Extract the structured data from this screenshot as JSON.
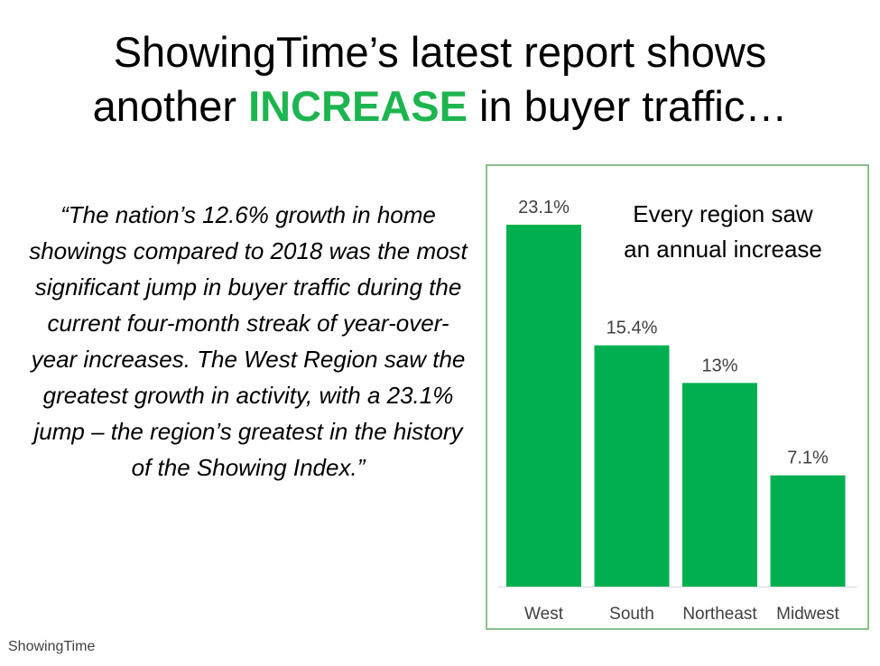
{
  "title": {
    "line1": "ShowingTime’s latest report shows",
    "line2_before": "another ",
    "line2_highlight": "INCREASE",
    "line2_after": " in buyer traffic…"
  },
  "quote": "“The nation’s 12.6% growth in home showings compared to 2018 was the most significant jump in buyer traffic during the current four-month streak of year-over-year increases. The West Region saw the greatest growth in activity, with a 23.1% jump – the region’s greatest in the history of the Showing Index.”",
  "source": "ShowingTime",
  "colors": {
    "bar": "#00b050",
    "highlight": "#1db54f",
    "border": "#8bbf8b"
  },
  "chart_data": {
    "type": "bar",
    "title": "Every region saw an annual increase",
    "title_lines": [
      "Every region saw",
      "an annual increase"
    ],
    "categories": [
      "West",
      "South",
      "Northeast",
      "Midwest"
    ],
    "values": [
      23.1,
      15.4,
      13,
      7.1
    ],
    "value_labels": [
      "23.1%",
      "15.4%",
      "13%",
      "7.1%"
    ],
    "xlabel": "",
    "ylabel": "",
    "ylim": [
      0,
      23.1
    ],
    "grid": false
  }
}
